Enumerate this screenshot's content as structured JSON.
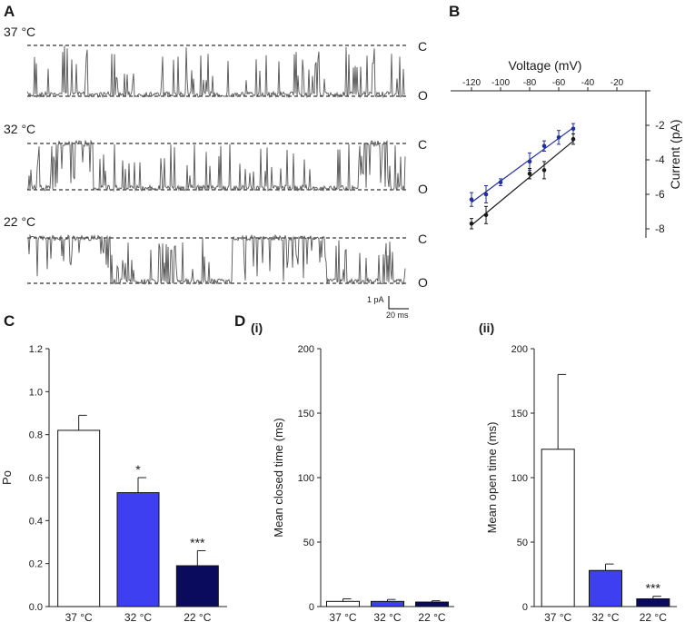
{
  "panel_labels": {
    "a": "A",
    "b": "B",
    "c": "C",
    "d": "D",
    "di": "(i)",
    "dii": "(ii)"
  },
  "colors": {
    "white_bar": "#ffffff",
    "blue": "#3f3ff2",
    "navy": "#0b0b5e",
    "trace": "#555555",
    "iv_blue": "#1f2f9f",
    "iv_black": "#1a1a1a"
  },
  "traces": {
    "temp_37": "37 °C",
    "temp_32": "32 °C",
    "temp_22": "22 °C",
    "closed_label": "C",
    "open_label": "O",
    "scale_current": "1 pA",
    "scale_time": "20 ms"
  },
  "chart_data": [
    {
      "id": "B",
      "type": "scatter",
      "title": "",
      "xlabel": "Voltage (mV)",
      "ylabel": "Current (pA)",
      "xticks": [
        "-120",
        "-100",
        "-80",
        "-60",
        "-40",
        "-20"
      ],
      "yticks": [
        "-2",
        "-4",
        "-6",
        "-8"
      ],
      "xlim": [
        -125,
        0
      ],
      "ylim": [
        -9,
        0
      ],
      "series": [
        {
          "name": "32 °C",
          "x": [
            -120,
            -110,
            -100,
            -80,
            -70,
            -60,
            -50
          ],
          "y": [
            -6.3,
            -6.0,
            -5.3,
            -4.1,
            -3.2,
            -2.7,
            -2.2
          ],
          "err": [
            0.4,
            0.5,
            0.2,
            0.5,
            0.3,
            0.4,
            0.3
          ]
        },
        {
          "name": "22 °C",
          "x": [
            -120,
            -110,
            -80,
            -70,
            -50
          ],
          "y": [
            -7.7,
            -7.2,
            -4.8,
            -4.6,
            -2.8
          ],
          "err": [
            0.3,
            0.5,
            0.3,
            0.5,
            0.3
          ]
        }
      ]
    },
    {
      "id": "C",
      "type": "bar",
      "ylabel": "Po",
      "categories": [
        "37 °C",
        "32 °C",
        "22 °C"
      ],
      "values": [
        0.82,
        0.53,
        0.19
      ],
      "errors": [
        0.07,
        0.07,
        0.07
      ],
      "significance": [
        "",
        "*",
        "***"
      ],
      "ylim": [
        0,
        1.2
      ],
      "yticks": [
        "0.0",
        "0.2",
        "0.4",
        "0.6",
        "0.8",
        "1.0",
        "1.2"
      ]
    },
    {
      "id": "D(i)",
      "type": "bar",
      "ylabel": "Mean closed time (ms)",
      "categories": [
        "37 °C",
        "32 °C",
        "22 °C"
      ],
      "values": [
        4,
        4,
        3.5
      ],
      "errors": [
        2,
        1.5,
        1
      ],
      "significance": [
        "",
        "",
        ""
      ],
      "ylim": [
        0,
        200
      ],
      "yticks": [
        "0",
        "50",
        "100",
        "150",
        "200"
      ]
    },
    {
      "id": "D(ii)",
      "type": "bar",
      "ylabel": "Mean open time (ms)",
      "categories": [
        "37 °C",
        "32 °C",
        "22 °C"
      ],
      "values": [
        122,
        28,
        6
      ],
      "errors": [
        58,
        5,
        2
      ],
      "significance": [
        "",
        "",
        "***"
      ],
      "ylim": [
        0,
        200
      ],
      "yticks": [
        "0",
        "50",
        "100",
        "150",
        "200"
      ]
    }
  ]
}
